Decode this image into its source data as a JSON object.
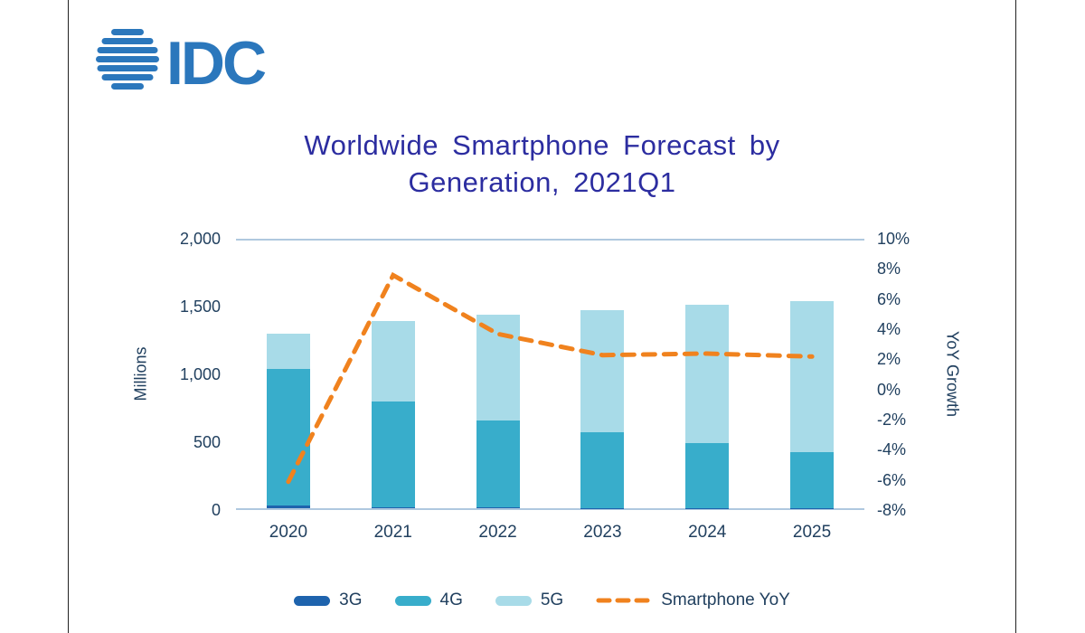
{
  "page": {
    "background": "#ffffff",
    "frame_border_color": "#222222"
  },
  "logo": {
    "text": "IDC",
    "color": "#2B77BC"
  },
  "title": {
    "line1": "Worldwide Smartphone Forecast by",
    "line2": "Generation, 2021Q1",
    "color": "#2C2DA0"
  },
  "chart_data": {
    "type": "bar",
    "subtype": "stacked-bar-with-line",
    "title": "Worldwide Smartphone Forecast by Generation, 2021Q1",
    "categories": [
      "2020",
      "2021",
      "2022",
      "2023",
      "2024",
      "2025"
    ],
    "unit": "millions of units",
    "series": [
      {
        "name": "3G",
        "type": "bar",
        "color": "#1E63AD",
        "values": [
          20,
          10,
          5,
          3,
          2,
          1
        ]
      },
      {
        "name": "4G",
        "type": "bar",
        "color": "#38ADCB",
        "values": [
          1010,
          780,
          645,
          560,
          478,
          415
        ]
      },
      {
        "name": "5G",
        "type": "bar",
        "color": "#A8DBE8",
        "values": [
          255,
          590,
          775,
          900,
          1020,
          1114
        ]
      },
      {
        "name": "Smartphone YoY",
        "type": "line",
        "color": "#F0821E",
        "dash": true,
        "values_percent": [
          -6.0,
          7.7,
          3.8,
          2.4,
          2.5,
          2.3
        ]
      }
    ],
    "left_axis": {
      "label": "Millions",
      "min": 0,
      "max": 2000,
      "tick_labels": [
        "2,000",
        "1,500",
        "1,000",
        "500",
        "0"
      ]
    },
    "right_axis": {
      "label": "YoY Growth",
      "min": -8,
      "max": 10,
      "tick_labels": [
        "10%",
        "8%",
        "6%",
        "4%",
        "2%",
        "0%",
        "-2%",
        "-4%",
        "-6%",
        "-8%"
      ]
    },
    "grid": "top-and-bottom-lines-only",
    "legend_position": "bottom"
  },
  "legend": {
    "items": [
      {
        "label": "3G",
        "swatch": "pill",
        "color": "#1E63AD"
      },
      {
        "label": "4G",
        "swatch": "pill",
        "color": "#38ADCB"
      },
      {
        "label": "5G",
        "swatch": "pill",
        "color": "#A8DBE8"
      },
      {
        "label": "Smartphone YoY",
        "swatch": "dashed-line",
        "color": "#F0821E"
      }
    ]
  }
}
